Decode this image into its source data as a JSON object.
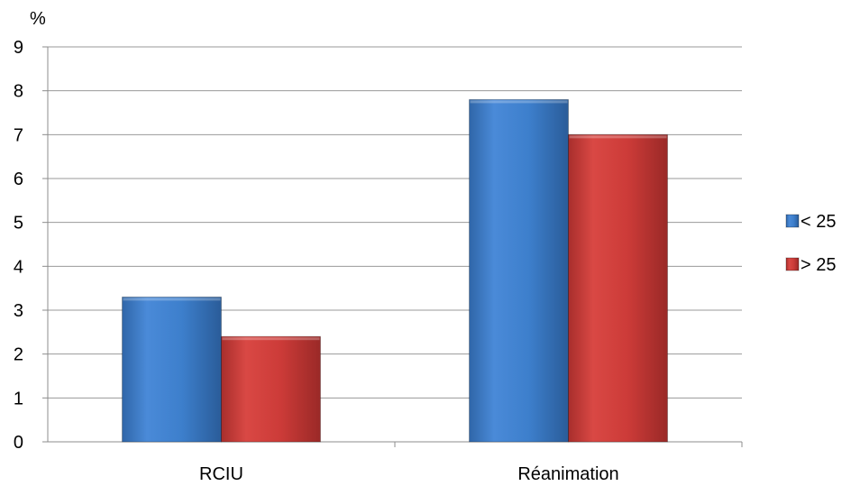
{
  "chart_data": {
    "type": "bar",
    "title": "",
    "xlabel": "",
    "ylabel": "%",
    "ylim": [
      0,
      9
    ],
    "yticks": [
      0,
      1,
      2,
      3,
      4,
      5,
      6,
      7,
      8,
      9
    ],
    "grid": true,
    "legend_position": "right",
    "categories": [
      "RCIU",
      "Réanimation"
    ],
    "series": [
      {
        "name": "< 25",
        "values": [
          3.3,
          7.8
        ],
        "color": "#3d7fcc"
      },
      {
        "name": "> 25",
        "values": [
          2.4,
          7.0
        ],
        "color": "#cc3b38"
      }
    ]
  }
}
